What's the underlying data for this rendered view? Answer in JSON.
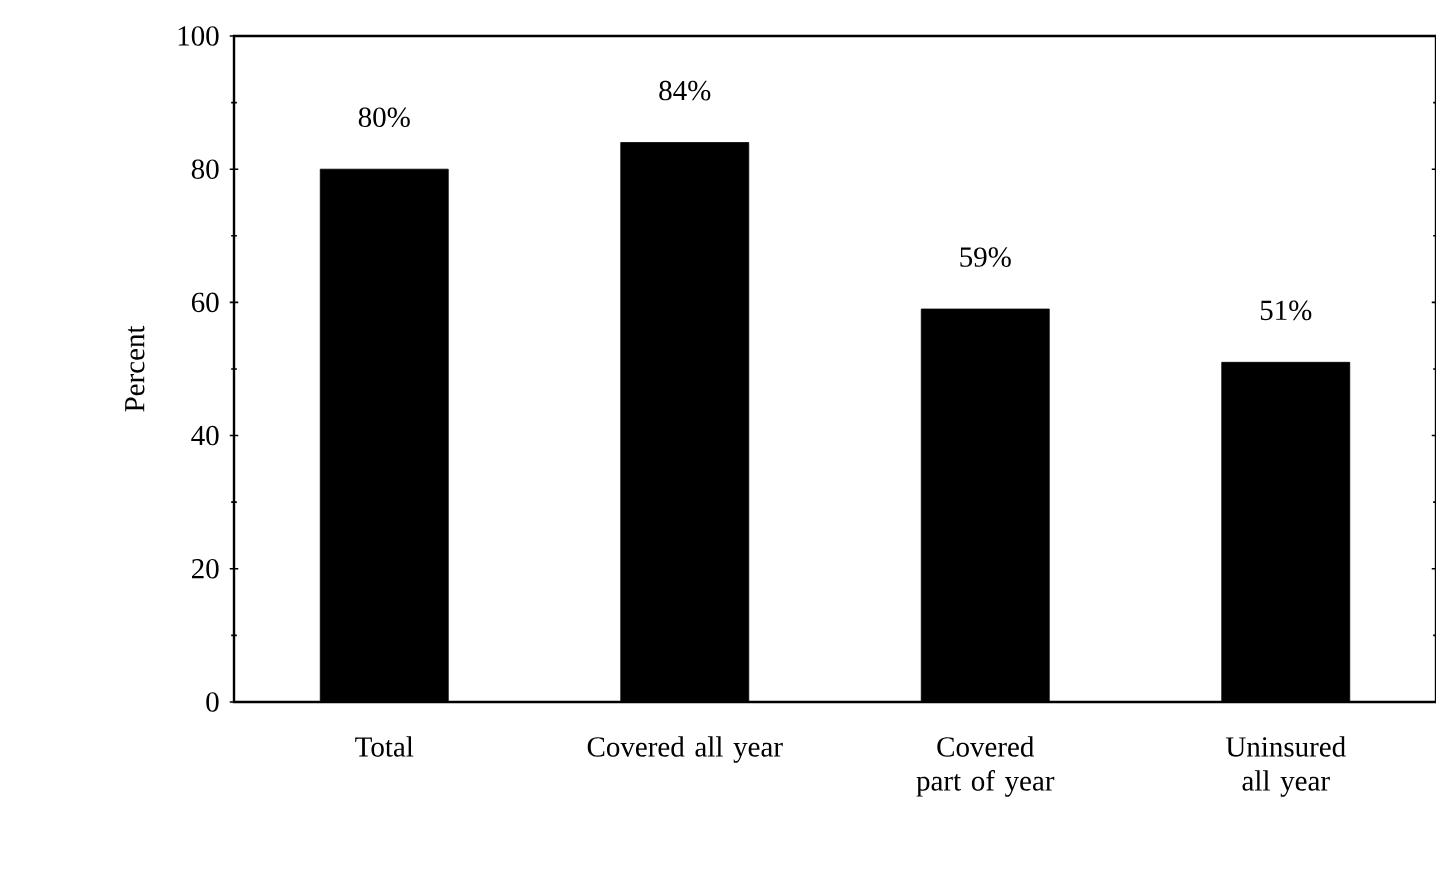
{
  "chart_data": {
    "type": "bar",
    "ylabel": "Percent",
    "categories": [
      "Total",
      "Covered all year",
      "Covered part of year",
      "Uninsured all year"
    ],
    "values": [
      80,
      84,
      59,
      51
    ],
    "value_labels": [
      "80%",
      "84%",
      "59%",
      "51%"
    ],
    "color": "#000000",
    "ylim": [
      0,
      100
    ],
    "yticks": [
      0,
      20,
      40,
      60,
      80,
      100
    ],
    "grid": false
  }
}
